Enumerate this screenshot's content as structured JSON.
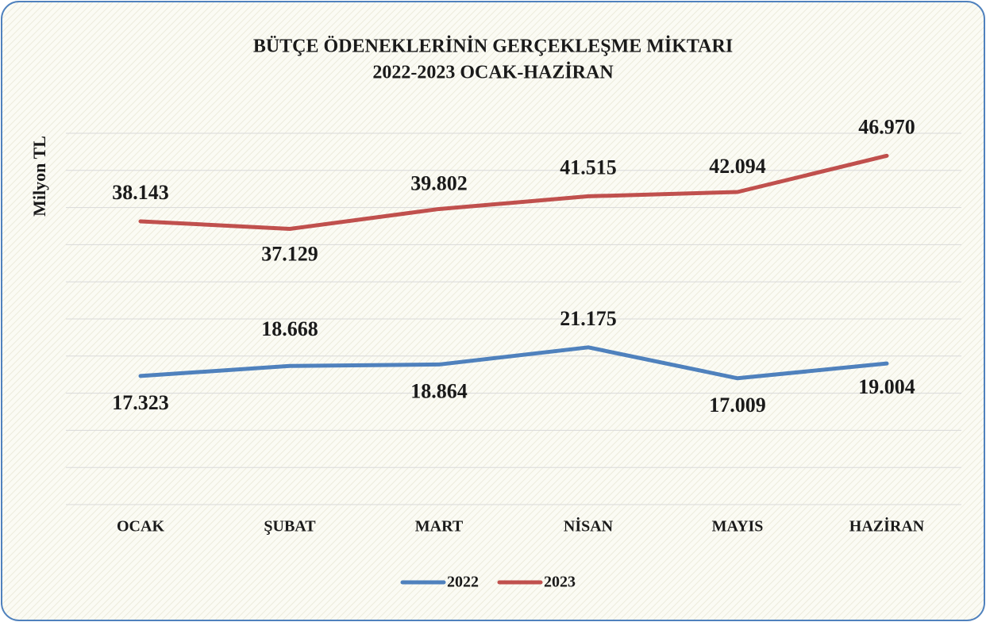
{
  "chart_data": {
    "type": "line",
    "title": "BÜTÇE ÖDENEKLERİNİN GERÇEKLEŞME MİKTARI",
    "subtitle": "2022-2023 OCAK-HAZİRAN",
    "y_label": "Milyon TL",
    "categories": [
      "OCAK",
      "ŞUBAT",
      "MART",
      "NİSAN",
      "MAYIS",
      "HAZİRAN"
    ],
    "series": [
      {
        "name": "2022",
        "color": "#4f81bd",
        "values": [
          17323,
          18668,
          18864,
          21175,
          17009,
          19004
        ],
        "value_labels": [
          "17.323",
          "18.668",
          "18.864",
          "21.175",
          "17.009",
          "19.004"
        ]
      },
      {
        "name": "2023",
        "color": "#c0504d",
        "values": [
          38143,
          37129,
          39802,
          41515,
          42094,
          46970
        ],
        "value_labels": [
          "38.143",
          "37.129",
          "39.802",
          "41.515",
          "42.094",
          "46.970"
        ]
      }
    ],
    "ylim": [
      0,
      50000
    ],
    "yticks": [
      0,
      5000,
      10000,
      15000,
      20000,
      25000,
      30000,
      35000,
      40000,
      45000,
      50000
    ],
    "grid": true,
    "legend": "bottom"
  }
}
